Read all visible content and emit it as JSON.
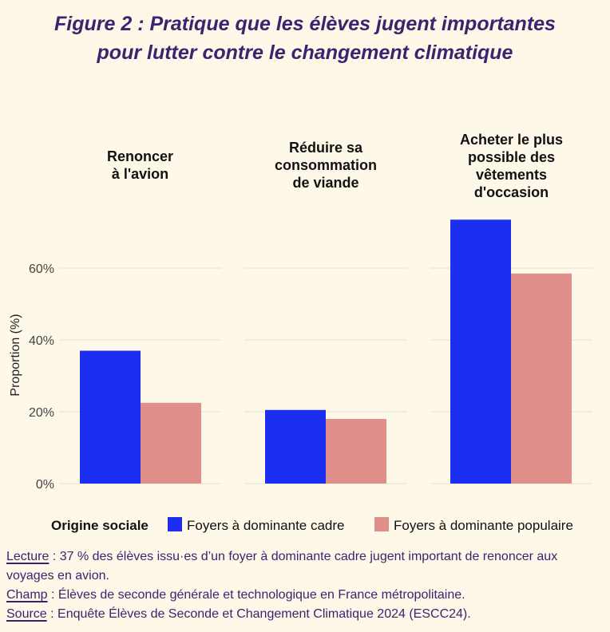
{
  "title_line1": "Figure 2 : Pratique que les élèves jugent importantes",
  "title_line2": "pour lutter contre le changement climatique",
  "colors": {
    "cadre": "#1c2ff0",
    "populaire": "#e08f8a",
    "grid": "#e3e0d6",
    "text": "#3a2470"
  },
  "chart_data": {
    "type": "bar",
    "panels": [
      {
        "label_lines": [
          "Renoncer",
          "à l'avion"
        ]
      },
      {
        "label_lines": [
          "Réduire sa",
          "consommation",
          "de viande"
        ]
      },
      {
        "label_lines": [
          "Acheter le plus",
          "possible des",
          "vêtements",
          "d'occasion"
        ]
      }
    ],
    "categories": [
      "Renoncer à l'avion",
      "Réduire sa consommation de viande",
      "Acheter le plus possible des vêtements d'occasion"
    ],
    "series": [
      {
        "name": "Foyers à dominante cadre",
        "values": [
          37,
          20.5,
          73.5
        ]
      },
      {
        "name": "Foyers à dominante populaire",
        "values": [
          22.5,
          18,
          58.5
        ]
      }
    ],
    "ylabel": "Proportion (%)",
    "yticks": [
      0,
      20,
      40,
      60
    ],
    "ytick_labels": [
      "0%",
      "20%",
      "40%",
      "60%"
    ],
    "ylim": [
      0,
      80
    ],
    "grid": true,
    "legend_title": "Origine sociale",
    "legend_position": "bottom"
  },
  "notes": {
    "lecture_label": "Lecture",
    "lecture_text": " : 37 % des élèves issu·es d’un foyer à dominante cadre jugent important de renoncer aux voyages en avion.",
    "champ_label": "Champ",
    "champ_text": " : Élèves de seconde générale et technologique en France métropolitaine.",
    "source_label": "Source",
    "source_text": " : Enquête Élèves de Seconde et Changement Climatique 2024 (ESCC24)."
  }
}
